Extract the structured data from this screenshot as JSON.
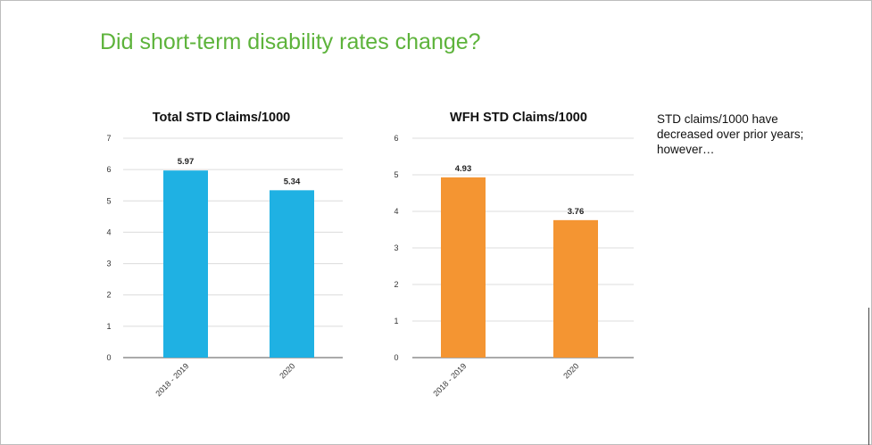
{
  "slide": {
    "title": "Did short-term disability rates change?",
    "note": "STD claims/1000 have decreased over prior years; however…"
  },
  "chart_data": [
    {
      "type": "bar",
      "title": "Total STD Claims/1000",
      "categories": [
        "2018 - 2019",
        "2020"
      ],
      "values": [
        5.97,
        5.34
      ],
      "value_labels": [
        "5.97",
        "5.34"
      ],
      "ylim": [
        0,
        7
      ],
      "yticks": [
        0,
        1,
        2,
        3,
        4,
        5,
        6,
        7
      ],
      "bar_color": "#1fb1e3",
      "grid": true
    },
    {
      "type": "bar",
      "title": "WFH STD Claims/1000",
      "categories": [
        "2018 - 2019",
        "2020"
      ],
      "values": [
        4.93,
        3.76
      ],
      "value_labels": [
        "4.93",
        "3.76"
      ],
      "ylim": [
        0,
        6
      ],
      "yticks": [
        0,
        1,
        2,
        3,
        4,
        5,
        6
      ],
      "bar_color": "#f49532",
      "grid": true
    }
  ]
}
